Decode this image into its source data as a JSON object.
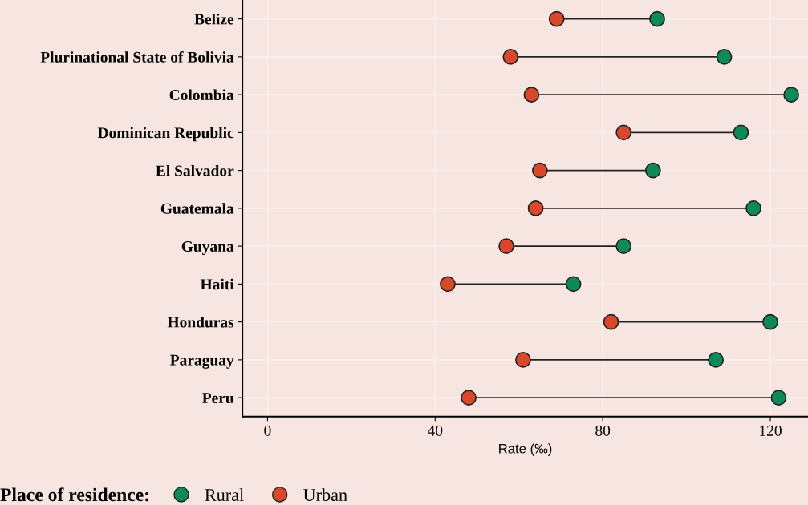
{
  "chart_data": {
    "type": "scatter",
    "orientation": "horizontal",
    "categories": [
      "Belize",
      "Plurinational State of Bolivia",
      "Colombia",
      "Dominican Republic",
      "El Salvador",
      "Guatemala",
      "Guyana",
      "Haiti",
      "Honduras",
      "Paraguay",
      "Peru"
    ],
    "series": [
      {
        "name": "Rural",
        "color": "#0e8a5a",
        "values": [
          93,
          109,
          125,
          113,
          92,
          116,
          85,
          73,
          120,
          107,
          122
        ]
      },
      {
        "name": "Urban",
        "color": "#d9482b",
        "values": [
          69,
          58,
          63,
          85,
          65,
          64,
          57,
          43,
          82,
          61,
          48
        ]
      }
    ],
    "xlabel": "Rate (‰)",
    "legend_title": "Place of residence:",
    "legend": "bottom",
    "xlim": [
      -6,
      129
    ],
    "xticks": [
      0,
      40,
      80,
      120
    ],
    "grid": true,
    "marker": "circle"
  }
}
